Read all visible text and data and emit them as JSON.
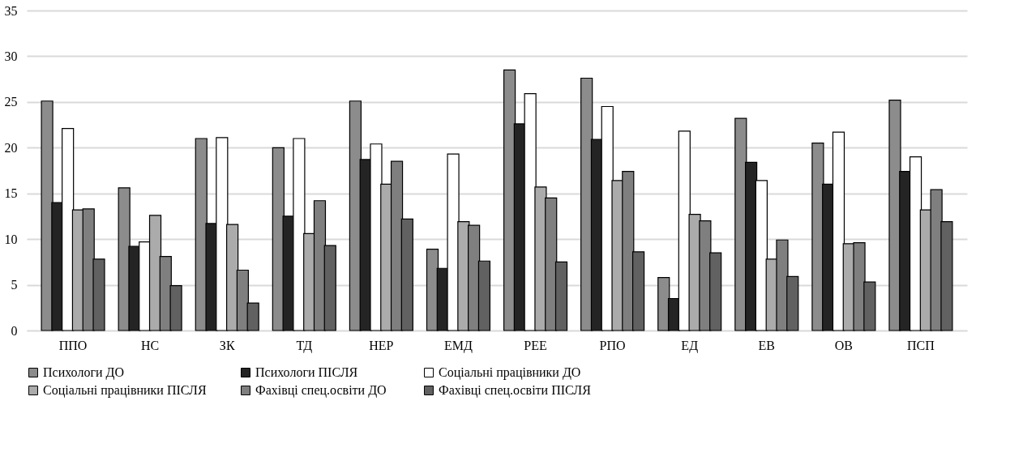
{
  "chart_data": {
    "type": "bar",
    "categories": [
      "ППО",
      "НС",
      "ЗК",
      "ТД",
      "НЕР",
      "ЕМД",
      "РЕЕ",
      "РПО",
      "ЕД",
      "ЕВ",
      "ОВ",
      "ПСП"
    ],
    "series": [
      {
        "name": "Психологи ДО",
        "color": "#8c8c8c",
        "values": [
          25.1,
          15.6,
          21,
          20,
          25.1,
          8.9,
          28.5,
          27.6,
          5.8,
          23.2,
          20.5,
          25.2
        ]
      },
      {
        "name": "Психологи ПІСЛЯ",
        "color": "#242424",
        "values": [
          14,
          9.2,
          11.7,
          12.5,
          18.7,
          6.8,
          22.6,
          20.9,
          3.5,
          18.4,
          16,
          17.4
        ]
      },
      {
        "name": "Соціальні працівники ДО",
        "color": "#ffffff",
        "values": [
          22.1,
          9.7,
          21.1,
          21,
          20.4,
          19.3,
          25.9,
          24.5,
          21.8,
          16.4,
          21.7,
          19
        ]
      },
      {
        "name": "Соціальні працівники ПІСЛЯ",
        "color": "#ababab",
        "values": [
          13.2,
          12.6,
          11.6,
          10.6,
          16,
          11.9,
          15.7,
          16.4,
          12.7,
          7.8,
          9.5,
          13.2
        ]
      },
      {
        "name": "Фахівці  спец.освіти ДО",
        "color": "#7f7f7f",
        "values": [
          13.3,
          8.1,
          6.6,
          14.2,
          18.5,
          11.5,
          14.5,
          17.4,
          12,
          9.9,
          9.6,
          15.4
        ]
      },
      {
        "name": "Фахівці  спец.освіти ПІСЛЯ",
        "color": "#616161",
        "values": [
          7.8,
          4.9,
          3,
          9.3,
          12.2,
          7.6,
          7.5,
          8.6,
          8.5,
          5.9,
          5.3,
          11.9
        ]
      }
    ],
    "ylim": [
      0,
      35
    ],
    "yticks": [
      0,
      5,
      10,
      15,
      20,
      25,
      30,
      35
    ],
    "grid": "y",
    "legend": "bottom"
  }
}
